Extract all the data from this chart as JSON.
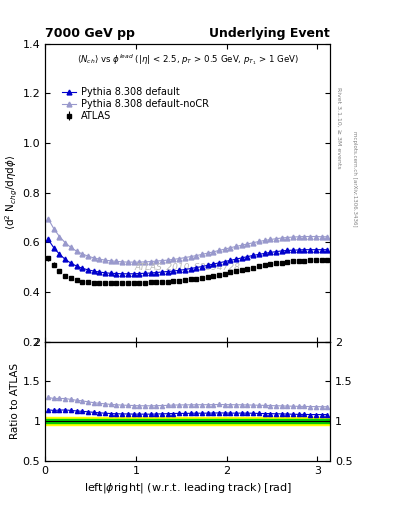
{
  "title_left": "7000 GeV pp",
  "title_right": "Underlying Event",
  "annotation": "ATLAS_2010_S8894728",
  "ylabel_main": "$\\langle$d$^2$ N$_{chg}$/d$\\eta$d$\\phi$$\\rangle$",
  "ylabel_ratio": "Ratio to ATLAS",
  "xlabel": "left|$\\phi$right| (w.r.t. leading track) [rad]",
  "rivet_label": "Rivet 3.1.10, ≥ 3M events",
  "mcplots_label": "mcplots.cern.ch [arXiv:1306.3436]",
  "xlim": [
    0,
    3.14159
  ],
  "ylim_main": [
    0.2,
    1.4
  ],
  "ylim_ratio": [
    0.5,
    2.0
  ],
  "x_ticks": [
    0,
    1,
    2,
    3
  ],
  "y_ticks_main": [
    0.2,
    0.4,
    0.6,
    0.8,
    1.0,
    1.2,
    1.4
  ],
  "y_ticks_ratio": [
    0.5,
    1.0,
    1.5,
    2.0
  ],
  "atlas_color": "black",
  "pythia_default_color": "#0000cc",
  "pythia_nocr_color": "#9999cc",
  "green_band_color": "#00cc00",
  "yellow_band_color": "#ffff00",
  "legend": [
    "ATLAS",
    "Pythia 8.308 default",
    "Pythia 8.308 default-noCR"
  ],
  "atlas_x": [
    0.031416,
    0.094248,
    0.15708,
    0.21991,
    0.28274,
    0.34558,
    0.40841,
    0.47124,
    0.53407,
    0.5969,
    0.65973,
    0.72257,
    0.7854,
    0.84823,
    0.91106,
    0.97389,
    1.03673,
    1.09956,
    1.16239,
    1.22522,
    1.28805,
    1.35088,
    1.41372,
    1.47655,
    1.53938,
    1.60221,
    1.66504,
    1.72788,
    1.79071,
    1.85354,
    1.91637,
    1.9792,
    2.04204,
    2.10487,
    2.1677,
    2.23053,
    2.29336,
    2.35619,
    2.41903,
    2.48186,
    2.54469,
    2.60752,
    2.67035,
    2.73319,
    2.79602,
    2.85885,
    2.92168,
    2.98451,
    3.04734,
    3.11017
  ],
  "atlas_y": [
    0.536,
    0.51,
    0.485,
    0.466,
    0.455,
    0.447,
    0.441,
    0.438,
    0.436,
    0.435,
    0.434,
    0.434,
    0.434,
    0.434,
    0.434,
    0.435,
    0.436,
    0.437,
    0.438,
    0.439,
    0.44,
    0.441,
    0.442,
    0.444,
    0.447,
    0.45,
    0.453,
    0.457,
    0.461,
    0.465,
    0.469,
    0.474,
    0.479,
    0.484,
    0.488,
    0.493,
    0.498,
    0.503,
    0.507,
    0.511,
    0.515,
    0.518,
    0.521,
    0.523,
    0.525,
    0.526,
    0.527,
    0.527,
    0.527,
    0.527
  ],
  "atlas_yerr": [
    0.01,
    0.009,
    0.008,
    0.008,
    0.007,
    0.007,
    0.007,
    0.007,
    0.007,
    0.007,
    0.007,
    0.007,
    0.007,
    0.007,
    0.007,
    0.007,
    0.007,
    0.007,
    0.007,
    0.007,
    0.007,
    0.007,
    0.007,
    0.007,
    0.007,
    0.007,
    0.007,
    0.007,
    0.007,
    0.007,
    0.007,
    0.007,
    0.007,
    0.007,
    0.007,
    0.007,
    0.007,
    0.007,
    0.007,
    0.007,
    0.007,
    0.007,
    0.007,
    0.007,
    0.007,
    0.007,
    0.007,
    0.007,
    0.007,
    0.007
  ],
  "pythia_default_y": [
    0.612,
    0.578,
    0.552,
    0.531,
    0.516,
    0.504,
    0.495,
    0.489,
    0.484,
    0.48,
    0.477,
    0.475,
    0.474,
    0.473,
    0.473,
    0.473,
    0.474,
    0.475,
    0.476,
    0.478,
    0.48,
    0.482,
    0.484,
    0.487,
    0.49,
    0.494,
    0.498,
    0.502,
    0.507,
    0.512,
    0.517,
    0.522,
    0.527,
    0.532,
    0.537,
    0.542,
    0.547,
    0.551,
    0.555,
    0.559,
    0.562,
    0.565,
    0.567,
    0.568,
    0.569,
    0.57,
    0.57,
    0.57,
    0.57,
    0.57
  ],
  "pythia_nocr_y": [
    0.695,
    0.655,
    0.623,
    0.598,
    0.579,
    0.564,
    0.553,
    0.544,
    0.537,
    0.532,
    0.528,
    0.525,
    0.523,
    0.521,
    0.52,
    0.52,
    0.52,
    0.521,
    0.522,
    0.524,
    0.526,
    0.528,
    0.531,
    0.534,
    0.538,
    0.542,
    0.546,
    0.551,
    0.556,
    0.561,
    0.567,
    0.572,
    0.578,
    0.583,
    0.588,
    0.593,
    0.598,
    0.603,
    0.607,
    0.611,
    0.614,
    0.617,
    0.619,
    0.621,
    0.622,
    0.623,
    0.623,
    0.623,
    0.622,
    0.622
  ],
  "green_band_low": 0.98,
  "green_band_high": 1.02,
  "yellow_band_low": 0.95,
  "yellow_band_high": 1.05
}
